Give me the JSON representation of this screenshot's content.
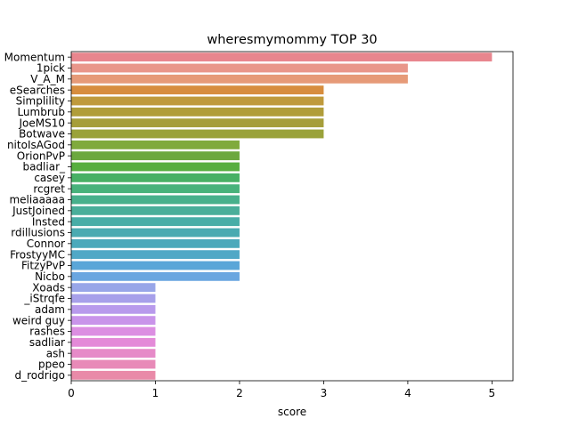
{
  "chart_data": {
    "type": "bar",
    "orientation": "horizontal",
    "title": "wheresmymommy TOP 30",
    "xlabel": "score",
    "ylabel": "",
    "xlim": [
      0,
      5.25
    ],
    "xticks": [
      0,
      1,
      2,
      3,
      4,
      5
    ],
    "grid": false,
    "categories": [
      "Momentum",
      "1pick",
      "V_A_M",
      "eSearches",
      "Simplility",
      "Lumbrub",
      "JoeMS10",
      "Botwave",
      "nitoIsAGod",
      "OrionPvP",
      "badliar_",
      "casey",
      "rcgret",
      "meliaaaaa",
      "JustJoined",
      "Insted",
      "rdillusions",
      "Connor",
      "FrostyyMC",
      "FitzyPvP",
      "Nicbo",
      "Xoads",
      "_iStrqfe",
      "adam",
      "weird guy",
      "rashes",
      "sadliar",
      "ash",
      "ppeo",
      "d_rodrigo"
    ],
    "values": [
      5,
      4,
      4,
      3,
      3,
      3,
      3,
      3,
      2,
      2,
      2,
      2,
      2,
      2,
      2,
      2,
      2,
      2,
      2,
      2,
      2,
      1,
      1,
      1,
      1,
      1,
      1,
      1,
      1,
      1
    ],
    "colors": [
      "#e8868e",
      "#e9968a",
      "#e69a78",
      "#d78d3e",
      "#bf9a3c",
      "#b09d3a",
      "#a69e3a",
      "#9aa23a",
      "#80aa3c",
      "#6ca83e",
      "#57ae3f",
      "#48b065",
      "#48b27b",
      "#48b08c",
      "#4aae9a",
      "#48ada7",
      "#4aaab1",
      "#4ca9bb",
      "#50a8c6",
      "#5aa6d8",
      "#6aa6e0",
      "#98a6e8",
      "#a7a0ea",
      "#b89aec",
      "#c994ea",
      "#dc8ee2",
      "#e48ad8",
      "#e68ac8",
      "#e88ab8",
      "#e98aa8"
    ]
  }
}
